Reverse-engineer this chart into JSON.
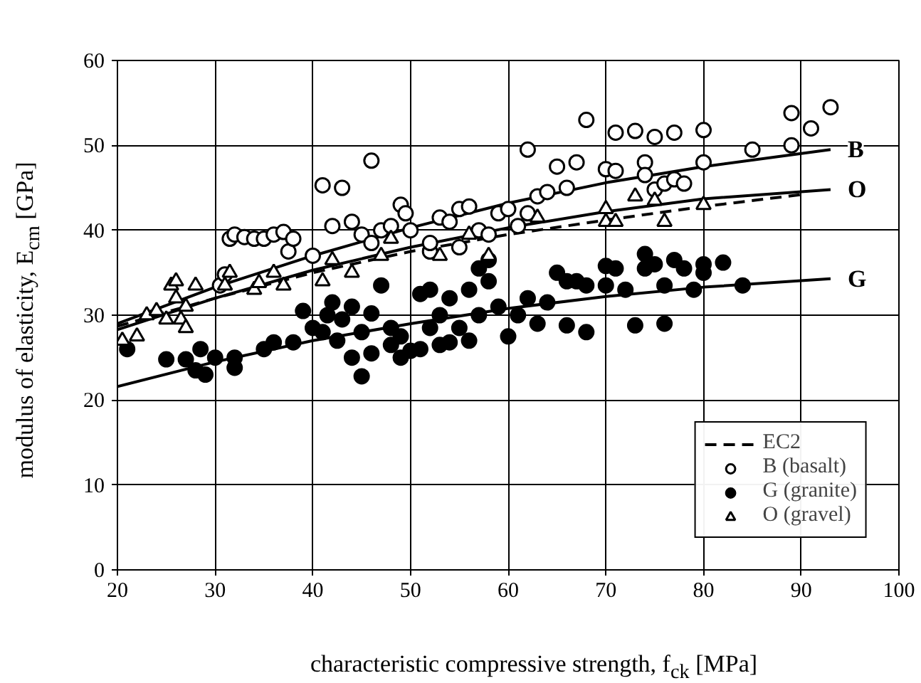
{
  "chart_data": {
    "type": "scatter",
    "xlabel": "characteristic compressive strength, f$_{ck}$ [MPa]",
    "ylabel": "modulus of elasticity, E$_{cm}$ [GPa]",
    "xlim": [
      20,
      100
    ],
    "ylim": [
      0,
      60
    ],
    "xticks": [
      20,
      30,
      40,
      50,
      60,
      70,
      80,
      90,
      100
    ],
    "yticks": [
      0,
      10,
      20,
      30,
      40,
      50,
      60
    ],
    "grid": true,
    "legend": "bottom right",
    "series": [
      {
        "name": "B (basalt)",
        "marker": "circle",
        "color": "#ffffff",
        "x": [
          30.5,
          31,
          31.5,
          32,
          33,
          34,
          35,
          36,
          37,
          37.5,
          38,
          40,
          41,
          42,
          43,
          44,
          45,
          46,
          46,
          47,
          48,
          49,
          49.5,
          50,
          52,
          52,
          53,
          54,
          55,
          55,
          56,
          57,
          58,
          59,
          60,
          61,
          62,
          62,
          63,
          64,
          65,
          66,
          67,
          68,
          70,
          71,
          71,
          73,
          74,
          74,
          75,
          75,
          76,
          77,
          77,
          78,
          80,
          80,
          85,
          89,
          89,
          91,
          93
        ],
        "values": [
          33.5,
          34.8,
          39,
          39.5,
          39.2,
          39,
          39,
          39.5,
          39.8,
          37.5,
          39,
          37,
          45.3,
          40.5,
          45,
          41,
          39.5,
          48.2,
          38.5,
          40,
          40.5,
          43,
          42,
          40,
          37.5,
          38.5,
          41.5,
          41,
          42.5,
          38,
          42.8,
          40,
          39.5,
          42,
          42.5,
          40.5,
          49.5,
          42,
          44,
          44.5,
          47.5,
          45,
          48,
          53,
          47.2,
          51.5,
          47,
          51.7,
          48,
          46.5,
          51,
          44.8,
          45.5,
          46,
          51.5,
          45.5,
          51.8,
          48,
          49.5,
          50,
          53.8,
          52,
          54.5
        ]
      },
      {
        "name": "G (granite)",
        "marker": "circle",
        "color": "#000000",
        "x": [
          21,
          25,
          27,
          28,
          28.5,
          29,
          30,
          32,
          32,
          35,
          36,
          38,
          39,
          40,
          41,
          41.5,
          42,
          42.5,
          43,
          44,
          44,
          45,
          45,
          46,
          46,
          47,
          48,
          48,
          49,
          49,
          50,
          51,
          51,
          52,
          52,
          53,
          53,
          54,
          54,
          55,
          56,
          57,
          57,
          58,
          58,
          59,
          60,
          61,
          62,
          63,
          64,
          65,
          66,
          67,
          68,
          68,
          70,
          70,
          71,
          73,
          74,
          74,
          75,
          76,
          76,
          77,
          78,
          79,
          80,
          80,
          82,
          84,
          72,
          66,
          56
        ],
        "values": [
          26,
          24.8,
          24.8,
          23.5,
          26,
          23,
          25,
          23.8,
          25,
          26,
          26.8,
          26.8,
          30.5,
          28.5,
          28,
          30,
          31.5,
          27,
          29.5,
          25,
          31,
          22.8,
          28,
          25.5,
          30.2,
          33.5,
          26.5,
          28.5,
          27.5,
          25,
          25.8,
          32.5,
          26,
          33,
          28.5,
          30,
          26.5,
          26.8,
          32,
          28.5,
          27,
          30,
          35.5,
          36.5,
          34,
          31,
          27.5,
          30,
          32,
          29,
          31.5,
          35,
          28.8,
          34,
          33.5,
          28,
          35.8,
          33.5,
          35.5,
          28.8,
          37.2,
          35.5,
          36,
          29,
          33.5,
          36.5,
          35.5,
          33,
          36,
          35,
          36.2,
          33.5,
          33,
          34,
          33
        ]
      },
      {
        "name": "O (gravel)",
        "marker": "triangle",
        "color": "#ffffff",
        "x": [
          20.5,
          22,
          23,
          24,
          25,
          25.5,
          26,
          26,
          26.5,
          27,
          27,
          28,
          31,
          31.5,
          34,
          34.5,
          36,
          37,
          41,
          42,
          44,
          47,
          48,
          53,
          56,
          58,
          63,
          70,
          70,
          71,
          73,
          75,
          76,
          80
        ],
        "values": [
          27,
          27.5,
          30,
          30.5,
          29.5,
          33.5,
          34,
          32,
          29.5,
          31,
          28.5,
          33.5,
          33.5,
          35,
          33,
          33.8,
          35,
          33.5,
          34,
          36.5,
          35,
          37,
          39,
          37,
          39.5,
          37,
          41.5,
          42.5,
          41,
          41,
          44,
          43.5,
          41,
          43
        ]
      },
      {
        "name": "EC2",
        "type": "line",
        "line_style": "dashed",
        "color": "#000000",
        "x": [
          20,
          30,
          40,
          50,
          60,
          70,
          80,
          90
        ],
        "values": [
          28.7,
          32,
          35,
          37.5,
          39.5,
          41.2,
          42.8,
          44.2
        ]
      },
      {
        "name": "B",
        "type": "line",
        "line_style": "solid",
        "color": "#000000",
        "x": [
          20,
          30,
          40,
          50,
          60,
          70,
          80,
          93
        ],
        "values": [
          29,
          33.3,
          37,
          40.3,
          43.2,
          45.6,
          47.5,
          49.5
        ]
      },
      {
        "name": "O",
        "type": "line",
        "line_style": "solid",
        "color": "#000000",
        "x": [
          20,
          30,
          40,
          50,
          60,
          70,
          80,
          93
        ],
        "values": [
          28.3,
          32,
          35.3,
          38,
          40.3,
          42.2,
          43.7,
          44.8
        ]
      },
      {
        "name": "G",
        "type": "line",
        "line_style": "solid",
        "color": "#000000",
        "x": [
          20,
          30,
          40,
          50,
          60,
          70,
          80,
          93
        ],
        "values": [
          21.6,
          24.5,
          27,
          29,
          30.8,
          32.2,
          33.3,
          34.3
        ]
      }
    ]
  }
}
